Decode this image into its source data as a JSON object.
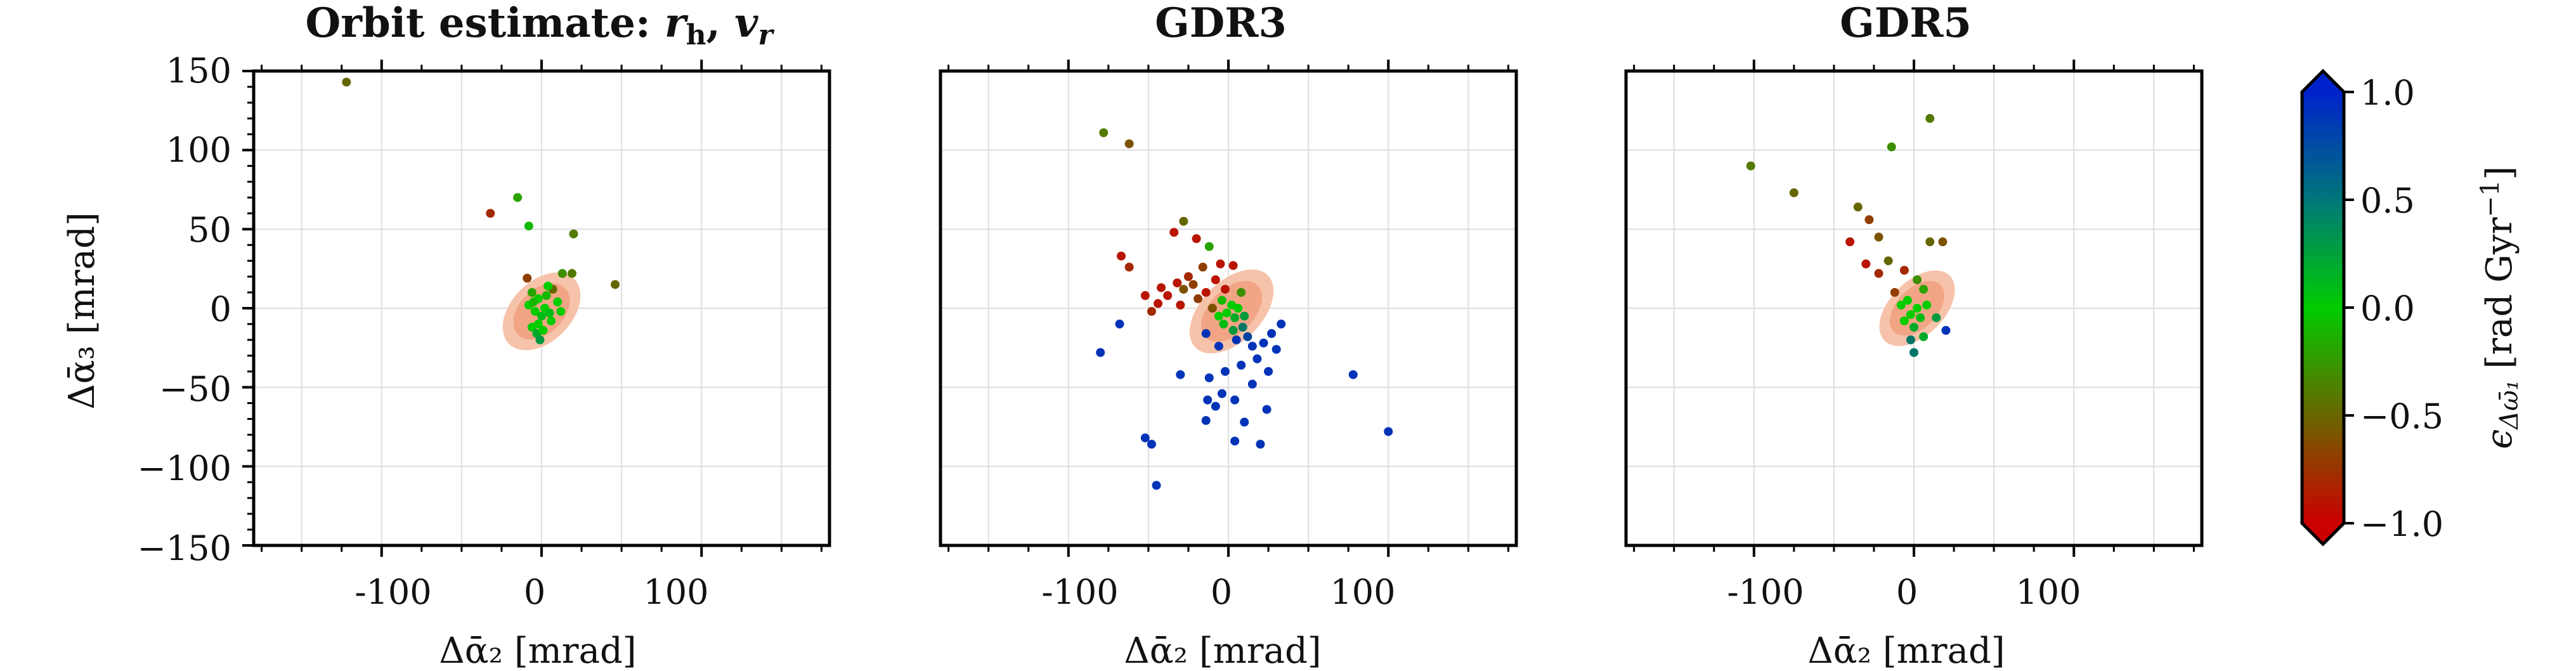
{
  "chart_data": [
    {
      "type": "scatter",
      "title": "Orbit estimate: r_h, v_r",
      "title_text": "Orbit estimate: ",
      "title_math": "r",
      "title_math_sub": "h",
      "title_math2": "v",
      "title_math2_sub": "r",
      "xlabel": "Δᾱ₂ [mrad]",
      "ylabel": "Δᾱ₃ [mrad]",
      "xlim": [
        -180,
        180
      ],
      "ylim": [
        -150,
        150
      ],
      "xticks": [
        -100,
        0,
        100
      ],
      "xtick_labels": [
        "-100",
        "0",
        "100"
      ],
      "yticks": [
        150,
        100,
        50,
        0,
        -50,
        -100,
        -150
      ],
      "ytick_labels": [
        "150",
        "100",
        "50",
        "0",
        "−50",
        "−100",
        "−150"
      ],
      "grid": true,
      "contour_region": {
        "center": [
          0,
          -2
        ],
        "radii": [
          18,
          20
        ]
      },
      "points": [
        {
          "x": -122,
          "y": 143,
          "c": -0.5
        },
        {
          "x": -32,
          "y": 60,
          "c": -0.8
        },
        {
          "x": -15,
          "y": 70,
          "c": -0.2
        },
        {
          "x": -8,
          "y": 52,
          "c": -0.1
        },
        {
          "x": 20,
          "y": 47,
          "c": -0.4
        },
        {
          "x": 13,
          "y": 22,
          "c": -0.3
        },
        {
          "x": 19,
          "y": 22,
          "c": -0.4
        },
        {
          "x": 46,
          "y": 15,
          "c": -0.5
        },
        {
          "x": -9,
          "y": 19,
          "c": -0.7
        },
        {
          "x": -6,
          "y": 10,
          "c": -0.2
        },
        {
          "x": -2,
          "y": 6,
          "c": 0.0
        },
        {
          "x": 3,
          "y": 8,
          "c": -0.1
        },
        {
          "x": 7,
          "y": 12,
          "c": -0.5
        },
        {
          "x": 10,
          "y": 4,
          "c": 0.0
        },
        {
          "x": -4,
          "y": -2,
          "c": 0.0
        },
        {
          "x": 0,
          "y": -5,
          "c": 0.1
        },
        {
          "x": -2,
          "y": -10,
          "c": 0.0
        },
        {
          "x": 2,
          "y": 0,
          "c": 0.0
        },
        {
          "x": 5,
          "y": -3,
          "c": 0.1
        },
        {
          "x": -6,
          "y": -12,
          "c": 0.0
        },
        {
          "x": -3,
          "y": -16,
          "c": 0.2
        },
        {
          "x": -1,
          "y": -20,
          "c": 0.3
        },
        {
          "x": 1,
          "y": -14,
          "c": 0.0
        },
        {
          "x": 6,
          "y": -8,
          "c": 0.0
        },
        {
          "x": -8,
          "y": 2,
          "c": 0.0
        },
        {
          "x": 4,
          "y": 14,
          "c": 0.0
        },
        {
          "x": 12,
          "y": -2,
          "c": 0.0
        },
        {
          "x": -5,
          "y": 4,
          "c": -0.1
        }
      ]
    },
    {
      "type": "scatter",
      "title": "GDR3",
      "xlabel": "",
      "ylabel": "",
      "xlim": [
        -180,
        180
      ],
      "ylim": [
        -150,
        150
      ],
      "xticks": [
        -100,
        0,
        100
      ],
      "xtick_labels": [
        "-100",
        "0",
        "100"
      ],
      "grid": true,
      "contour_region": {
        "center": [
          2,
          -2
        ],
        "radii": [
          20,
          20
        ]
      },
      "points": [
        {
          "x": -78,
          "y": 111,
          "c": -0.4
        },
        {
          "x": -62,
          "y": 104,
          "c": -0.6
        },
        {
          "x": -28,
          "y": 55,
          "c": -0.5
        },
        {
          "x": -34,
          "y": 48,
          "c": -0.9
        },
        {
          "x": -12,
          "y": 39,
          "c": -0.2
        },
        {
          "x": -20,
          "y": 44,
          "c": -0.9
        },
        {
          "x": -67,
          "y": 33,
          "c": -0.9
        },
        {
          "x": -62,
          "y": 26,
          "c": -0.8
        },
        {
          "x": -5,
          "y": 28,
          "c": -0.9
        },
        {
          "x": 3,
          "y": 27,
          "c": -0.9
        },
        {
          "x": -16,
          "y": 26,
          "c": -0.7
        },
        {
          "x": -25,
          "y": 20,
          "c": -0.8
        },
        {
          "x": -32,
          "y": 16,
          "c": -0.9
        },
        {
          "x": -28,
          "y": 12,
          "c": -0.6
        },
        {
          "x": -22,
          "y": 15,
          "c": -0.7
        },
        {
          "x": -38,
          "y": 8,
          "c": -0.9
        },
        {
          "x": -42,
          "y": 13,
          "c": -0.9
        },
        {
          "x": -14,
          "y": 10,
          "c": -0.9
        },
        {
          "x": -19,
          "y": 6,
          "c": -0.7
        },
        {
          "x": -44,
          "y": 3,
          "c": -0.9
        },
        {
          "x": -52,
          "y": 8,
          "c": -0.9
        },
        {
          "x": -30,
          "y": 2,
          "c": -0.9
        },
        {
          "x": -10,
          "y": 0,
          "c": -0.6
        },
        {
          "x": -48,
          "y": -2,
          "c": -0.8
        },
        {
          "x": -8,
          "y": 18,
          "c": -0.9
        },
        {
          "x": -2,
          "y": 12,
          "c": -0.9
        },
        {
          "x": 8,
          "y": 10,
          "c": -0.3
        },
        {
          "x": -4,
          "y": 5,
          "c": -0.1
        },
        {
          "x": 2,
          "y": 2,
          "c": 0.0
        },
        {
          "x": -1,
          "y": -3,
          "c": 0.0
        },
        {
          "x": 4,
          "y": -6,
          "c": 0.2
        },
        {
          "x": 6,
          "y": 0,
          "c": 0.0
        },
        {
          "x": -3,
          "y": -10,
          "c": 0.1
        },
        {
          "x": 3,
          "y": -14,
          "c": 0.3
        },
        {
          "x": 10,
          "y": -5,
          "c": 0.3
        },
        {
          "x": 9,
          "y": -12,
          "c": 0.5
        },
        {
          "x": -6,
          "y": -5,
          "c": 0.0
        },
        {
          "x": 12,
          "y": -18,
          "c": 0.8
        },
        {
          "x": 5,
          "y": -20,
          "c": 0.9
        },
        {
          "x": -14,
          "y": -16,
          "c": 0.9
        },
        {
          "x": -6,
          "y": -24,
          "c": 0.9
        },
        {
          "x": 15,
          "y": -24,
          "c": 0.9
        },
        {
          "x": 22,
          "y": -22,
          "c": 0.9
        },
        {
          "x": 27,
          "y": -16,
          "c": 0.9
        },
        {
          "x": 33,
          "y": -10,
          "c": 0.9
        },
        {
          "x": 30,
          "y": -26,
          "c": 0.9
        },
        {
          "x": 18,
          "y": -32,
          "c": 0.9
        },
        {
          "x": 8,
          "y": -36,
          "c": 0.9
        },
        {
          "x": -2,
          "y": -40,
          "c": 0.9
        },
        {
          "x": -30,
          "y": -42,
          "c": 0.9
        },
        {
          "x": -12,
          "y": -44,
          "c": 0.9
        },
        {
          "x": 25,
          "y": -40,
          "c": 0.9
        },
        {
          "x": 15,
          "y": -48,
          "c": 0.9
        },
        {
          "x": -4,
          "y": -54,
          "c": 0.9
        },
        {
          "x": -13,
          "y": -58,
          "c": 0.9
        },
        {
          "x": -8,
          "y": -62,
          "c": 0.9
        },
        {
          "x": 4,
          "y": -58,
          "c": 0.9
        },
        {
          "x": 24,
          "y": -64,
          "c": 0.9
        },
        {
          "x": -14,
          "y": -71,
          "c": 0.9
        },
        {
          "x": 10,
          "y": -72,
          "c": 0.9
        },
        {
          "x": 4,
          "y": -84,
          "c": 0.9
        },
        {
          "x": 20,
          "y": -86,
          "c": 0.9
        },
        {
          "x": -52,
          "y": -82,
          "c": 0.9
        },
        {
          "x": -48,
          "y": -86,
          "c": 0.9
        },
        {
          "x": -80,
          "y": -28,
          "c": 0.9
        },
        {
          "x": -68,
          "y": -10,
          "c": 0.9
        },
        {
          "x": -45,
          "y": -112,
          "c": 0.9
        },
        {
          "x": 78,
          "y": -42,
          "c": 0.9
        },
        {
          "x": 100,
          "y": -78,
          "c": 0.9
        }
      ]
    },
    {
      "type": "scatter",
      "title": "GDR5",
      "xlabel": "",
      "ylabel": "",
      "xlim": [
        -180,
        180
      ],
      "ylim": [
        -150,
        150
      ],
      "xticks": [
        -100,
        0,
        100
      ],
      "xtick_labels": [
        "-100",
        "0",
        "100"
      ],
      "grid": true,
      "contour_region": {
        "center": [
          2,
          0
        ],
        "radii": [
          18,
          18
        ]
      },
      "points": [
        {
          "x": 10,
          "y": 120,
          "c": -0.4
        },
        {
          "x": -14,
          "y": 102,
          "c": -0.3
        },
        {
          "x": -102,
          "y": 90,
          "c": -0.4
        },
        {
          "x": -75,
          "y": 73,
          "c": -0.5
        },
        {
          "x": -35,
          "y": 64,
          "c": -0.5
        },
        {
          "x": -28,
          "y": 56,
          "c": -0.7
        },
        {
          "x": -22,
          "y": 45,
          "c": -0.6
        },
        {
          "x": -40,
          "y": 42,
          "c": -0.9
        },
        {
          "x": 10,
          "y": 42,
          "c": -0.5
        },
        {
          "x": 18,
          "y": 42,
          "c": -0.6
        },
        {
          "x": -16,
          "y": 30,
          "c": -0.5
        },
        {
          "x": -6,
          "y": 24,
          "c": -0.8
        },
        {
          "x": -30,
          "y": 28,
          "c": -0.9
        },
        {
          "x": -22,
          "y": 22,
          "c": -0.8
        },
        {
          "x": 2,
          "y": 18,
          "c": -0.3
        },
        {
          "x": -12,
          "y": 10,
          "c": -0.7
        },
        {
          "x": 6,
          "y": 12,
          "c": -0.2
        },
        {
          "x": -4,
          "y": 5,
          "c": 0.0
        },
        {
          "x": 2,
          "y": 0,
          "c": 0.0
        },
        {
          "x": -2,
          "y": -4,
          "c": 0.0
        },
        {
          "x": 4,
          "y": -6,
          "c": 0.1
        },
        {
          "x": -6,
          "y": -8,
          "c": 0.0
        },
        {
          "x": 0,
          "y": -12,
          "c": 0.2
        },
        {
          "x": 8,
          "y": 2,
          "c": 0.0
        },
        {
          "x": -8,
          "y": 2,
          "c": 0.0
        },
        {
          "x": 14,
          "y": -6,
          "c": 0.3
        },
        {
          "x": 20,
          "y": -14,
          "c": 0.9
        },
        {
          "x": -2,
          "y": -20,
          "c": 0.5
        },
        {
          "x": 0,
          "y": -28,
          "c": 0.5
        },
        {
          "x": 6,
          "y": -18,
          "c": 0.2
        }
      ]
    }
  ],
  "colorbar": {
    "label": "ϵ_{Δω̄₁} [rad Gyr⁻¹]",
    "label_main": "ϵ",
    "label_sub": "Δω̄₁",
    "label_units": " [rad Gyr",
    "label_exp": "−1",
    "label_close": "]",
    "range": [
      -1.0,
      1.0
    ],
    "ticks": [
      1.0,
      0.5,
      0.0,
      -0.5,
      -1.0
    ],
    "tick_labels": [
      "1.0",
      "0.5",
      "0.0",
      "−0.5",
      "−1.0"
    ],
    "colors": [
      "#cc0000",
      "#00cc00",
      "#0022cc"
    ],
    "extend": "both"
  },
  "colors": {
    "contour_outer": "#f6c3aa",
    "contour_inner": "#f1a585",
    "grid": "#dedede"
  }
}
